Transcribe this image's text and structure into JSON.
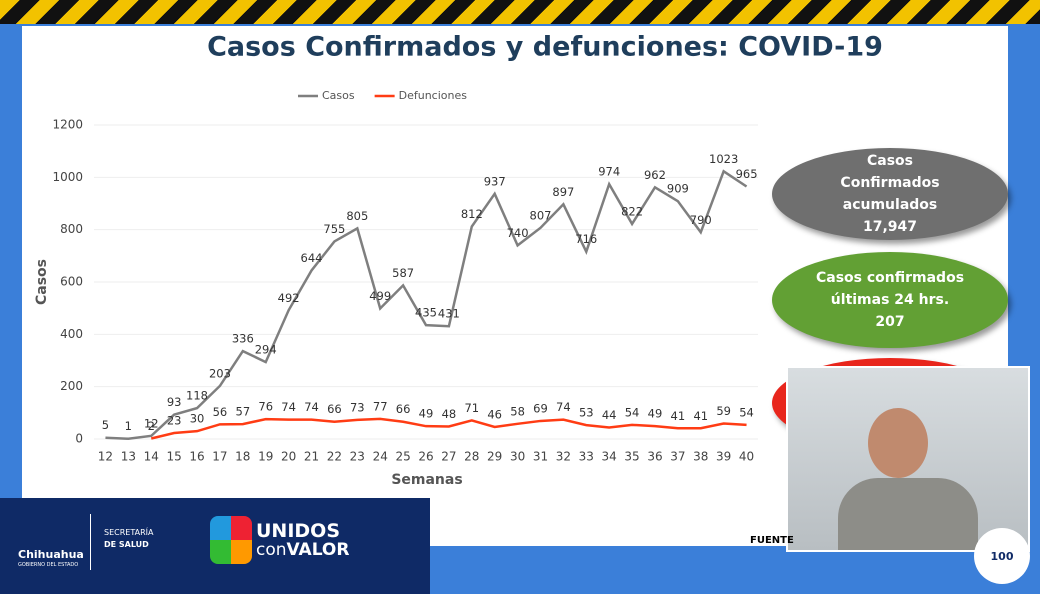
{
  "chart_data": {
    "type": "line",
    "title": "Casos Confirmados y defunciones: COVID-19",
    "x_label": "Semanas",
    "y_label": "Casos",
    "categories": [
      "12",
      "13",
      "14",
      "15",
      "16",
      "17",
      "18",
      "19",
      "20",
      "21",
      "22",
      "23",
      "24",
      "25",
      "26",
      "27",
      "28",
      "29",
      "30",
      "31",
      "32",
      "33",
      "34",
      "35",
      "36",
      "37",
      "38",
      "39",
      "40"
    ],
    "series": [
      {
        "name": "Casos",
        "color": "#7f7f7f",
        "values": [
          5,
          1,
          12,
          93,
          118,
          203,
          336,
          294,
          492,
          644,
          755,
          805,
          499,
          587,
          435,
          431,
          812,
          937,
          740,
          807,
          897,
          716,
          974,
          822,
          962,
          909,
          790,
          1023,
          965
        ]
      },
      {
        "name": "Defunciones",
        "color": "#ff3c14",
        "values": [
          null,
          null,
          2,
          23,
          30,
          56,
          57,
          76,
          74,
          74,
          66,
          73,
          77,
          66,
          49,
          48,
          71,
          46,
          58,
          69,
          74,
          53,
          44,
          54,
          49,
          41,
          41,
          59,
          54
        ]
      }
    ],
    "ylim": [
      0,
      1200
    ],
    "yticks": [
      0,
      200,
      400,
      600,
      800,
      1000,
      1200
    ],
    "legend": "top"
  },
  "panels": [
    {
      "title": "Casos Confirmados acumulados",
      "value": "17,947",
      "color": "#6f6f6f"
    },
    {
      "title": "Casos confirmados últimas 24 hrs.",
      "value": "207",
      "color": "#62a034"
    }
  ],
  "footer": {
    "state": "Chihuahua",
    "government": "GOBIERNO DEL ESTADO",
    "secretariat": "SECRETARÍA",
    "department": "DE SALUD",
    "slogan_1": "UNIDOS",
    "slogan_2": "con",
    "slogan_3": "VALOR",
    "source": "FUENTE",
    "viewers": "100"
  }
}
